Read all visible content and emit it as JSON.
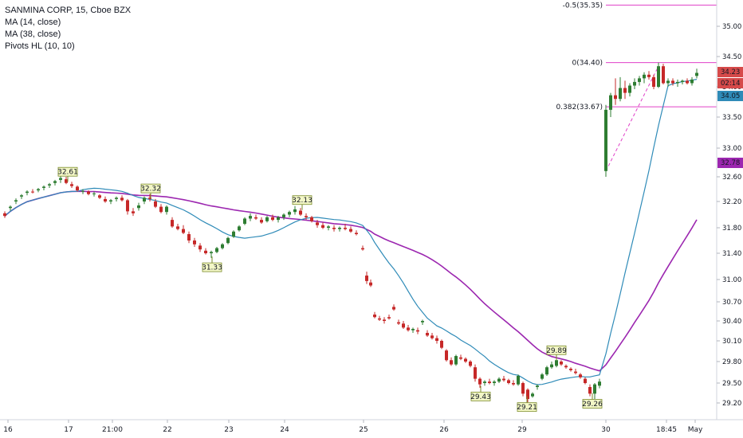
{
  "legend": {
    "title": "SANMINA CORP, 15, Cboe BZX",
    "ma14": "MA (14, close)",
    "ma38": "MA (38, close)",
    "pivots": "Pivots HL (10, 10)"
  },
  "colors": {
    "up": "#2e7d32",
    "down": "#c62828",
    "ma14": "#2f8bb8",
    "ma38": "#9c27b0",
    "fib": "#e040c8",
    "pivot_fill": "#f3f7c7",
    "pivot_border": "#7a8a2a"
  },
  "chart_data": {
    "type": "candlestick",
    "y_ticks": [
      "35.00",
      "34.50",
      "34.00",
      "33.50",
      "33.00",
      "32.60",
      "32.20",
      "31.80",
      "31.40",
      "31.00",
      "30.70",
      "30.40",
      "30.10",
      "29.80",
      "29.50",
      "29.20"
    ],
    "x_labels": [
      "16",
      "17",
      "21:00",
      "22",
      "23",
      "24",
      "25",
      "26",
      "29",
      "30",
      "18:45",
      "May"
    ],
    "ylim": [
      29.05,
      35.45
    ],
    "price_labels": [
      {
        "value": "34.23",
        "color": "#d64a4a"
      },
      {
        "value": "02:14",
        "color": "#d64a4a"
      },
      {
        "value": "34.05",
        "color": "#2f8bb8"
      },
      {
        "value": "32.78",
        "color": "#9c27b0"
      }
    ],
    "fib_levels": [
      {
        "label": "-0.5(35.35)",
        "value": 35.35
      },
      {
        "label": "0(34.40)",
        "value": 34.4
      },
      {
        "label": "0.382(33.67)",
        "value": 33.67
      }
    ],
    "pivots": [
      {
        "label": "32.61",
        "type": "high",
        "x": 85,
        "y": 32.52
      },
      {
        "label": "32.32",
        "type": "high",
        "x": 189,
        "y": 32.25
      },
      {
        "label": "31.33",
        "type": "low",
        "x": 266,
        "y": 31.35
      },
      {
        "label": "32.13",
        "type": "high",
        "x": 379,
        "y": 32.07
      },
      {
        "label": "29.43",
        "type": "low",
        "x": 603,
        "y": 29.46
      },
      {
        "label": "29.89",
        "type": "high",
        "x": 698,
        "y": 29.82
      },
      {
        "label": "29.21",
        "type": "low",
        "x": 661,
        "y": 29.3
      },
      {
        "label": "29.26",
        "type": "low",
        "x": 743,
        "y": 29.35
      }
    ],
    "candles": [
      [
        6,
        32.02,
        32.05,
        31.95,
        31.98
      ],
      [
        13,
        32.1,
        32.14,
        32.06,
        32.12
      ],
      [
        20,
        32.2,
        32.25,
        32.16,
        32.22
      ],
      [
        27,
        32.28,
        32.32,
        32.24,
        32.3
      ],
      [
        34,
        32.34,
        32.38,
        32.3,
        32.36
      ],
      [
        41,
        32.36,
        32.4,
        32.33,
        32.35
      ],
      [
        48,
        32.38,
        32.42,
        32.35,
        32.4
      ],
      [
        55,
        32.42,
        32.46,
        32.38,
        32.44
      ],
      [
        62,
        32.46,
        32.5,
        32.42,
        32.48
      ],
      [
        69,
        32.5,
        32.55,
        32.46,
        32.53
      ],
      [
        76,
        32.55,
        32.61,
        32.5,
        32.58
      ],
      [
        83,
        32.56,
        32.6,
        32.48,
        32.5
      ],
      [
        90,
        32.48,
        32.52,
        32.42,
        32.45
      ],
      [
        97,
        32.44,
        32.46,
        32.36,
        32.38
      ],
      [
        104,
        32.36,
        32.4,
        32.32,
        32.37
      ],
      [
        111,
        32.36,
        32.38,
        32.3,
        32.32
      ],
      [
        118,
        32.32,
        32.36,
        32.28,
        32.33
      ],
      [
        125,
        32.3,
        32.32,
        32.24,
        32.26
      ],
      [
        132,
        32.24,
        32.28,
        32.18,
        32.2
      ],
      [
        139,
        32.2,
        32.24,
        32.16,
        32.22
      ],
      [
        146,
        32.24,
        32.28,
        32.2,
        32.26
      ],
      [
        153,
        32.26,
        32.3,
        32.2,
        32.22
      ],
      [
        160,
        32.22,
        32.24,
        32.0,
        32.05
      ],
      [
        167,
        32.05,
        32.1,
        31.98,
        32.02
      ],
      [
        174,
        32.1,
        32.18,
        32.06,
        32.14
      ],
      [
        181,
        32.2,
        32.28,
        32.16,
        32.26
      ],
      [
        188,
        32.26,
        32.32,
        32.2,
        32.24
      ],
      [
        195,
        32.2,
        32.24,
        32.1,
        32.12
      ],
      [
        202,
        32.12,
        32.16,
        32.02,
        32.04
      ],
      [
        209,
        32.04,
        32.14,
        32.0,
        32.12
      ],
      [
        216,
        31.92,
        31.96,
        31.8,
        31.82
      ],
      [
        223,
        31.82,
        31.86,
        31.76,
        31.78
      ],
      [
        230,
        31.78,
        31.84,
        31.7,
        31.72
      ],
      [
        237,
        31.7,
        31.74,
        31.56,
        31.6
      ],
      [
        244,
        31.6,
        31.64,
        31.5,
        31.54
      ],
      [
        251,
        31.52,
        31.56,
        31.42,
        31.46
      ],
      [
        258,
        31.44,
        31.48,
        31.38,
        31.4
      ],
      [
        265,
        31.4,
        31.44,
        31.33,
        31.42
      ],
      [
        272,
        31.42,
        31.5,
        31.4,
        31.48
      ],
      [
        279,
        31.48,
        31.56,
        31.46,
        31.54
      ],
      [
        286,
        31.56,
        31.66,
        31.54,
        31.64
      ],
      [
        293,
        31.66,
        31.76,
        31.64,
        31.74
      ],
      [
        300,
        31.76,
        31.84,
        31.74,
        31.82
      ],
      [
        307,
        31.86,
        31.96,
        31.84,
        31.94
      ],
      [
        314,
        31.94,
        32.02,
        31.9,
        31.98
      ],
      [
        321,
        31.96,
        32.0,
        31.92,
        31.94
      ],
      [
        328,
        31.92,
        31.96,
        31.86,
        31.88
      ],
      [
        335,
        31.9,
        31.98,
        31.88,
        31.96
      ],
      [
        342,
        31.96,
        32.0,
        31.9,
        31.92
      ],
      [
        349,
        31.92,
        31.98,
        31.88,
        31.96
      ],
      [
        356,
        31.96,
        32.02,
        31.92,
        32.0
      ],
      [
        363,
        32.0,
        32.06,
        31.96,
        32.04
      ],
      [
        370,
        32.04,
        32.13,
        32.0,
        32.08
      ],
      [
        377,
        32.06,
        32.1,
        31.98,
        32.0
      ],
      [
        384,
        31.98,
        32.02,
        31.92,
        31.96
      ],
      [
        391,
        31.96,
        31.98,
        31.88,
        31.9
      ],
      [
        398,
        31.88,
        31.92,
        31.8,
        31.84
      ],
      [
        405,
        31.84,
        31.88,
        31.78,
        31.8
      ],
      [
        412,
        31.8,
        31.84,
        31.76,
        31.82
      ],
      [
        419,
        31.8,
        31.84,
        31.74,
        31.78
      ],
      [
        426,
        31.78,
        31.82,
        31.74,
        31.8
      ],
      [
        433,
        31.8,
        31.86,
        31.76,
        31.78
      ],
      [
        440,
        31.78,
        31.82,
        31.72,
        31.74
      ],
      [
        447,
        31.72,
        31.76,
        31.68,
        31.7
      ],
      [
        455,
        31.48,
        31.52,
        31.44,
        31.46
      ],
      [
        460,
        31.06,
        31.12,
        30.94,
        30.98
      ],
      [
        465,
        30.96,
        31.0,
        30.9,
        30.92
      ],
      [
        470,
        30.5,
        30.54,
        30.44,
        30.46
      ],
      [
        476,
        30.44,
        30.48,
        30.4,
        30.42
      ],
      [
        482,
        30.42,
        30.46,
        30.36,
        30.4
      ],
      [
        488,
        30.46,
        30.5,
        30.42,
        30.44
      ],
      [
        494,
        30.62,
        30.66,
        30.56,
        30.58
      ],
      [
        500,
        30.38,
        30.42,
        30.34,
        30.36
      ],
      [
        506,
        30.36,
        30.4,
        30.28,
        30.3
      ],
      [
        512,
        30.3,
        30.34,
        30.24,
        30.26
      ],
      [
        518,
        30.26,
        30.3,
        30.22,
        30.28
      ],
      [
        524,
        30.26,
        30.3,
        30.2,
        30.24
      ],
      [
        530,
        30.38,
        30.42,
        30.34,
        30.4
      ],
      [
        536,
        30.22,
        30.26,
        30.16,
        30.18
      ],
      [
        542,
        30.18,
        30.22,
        30.12,
        30.14
      ],
      [
        548,
        30.14,
        30.18,
        30.06,
        30.1
      ],
      [
        554,
        30.1,
        30.12,
        29.98,
        30.0
      ],
      [
        560,
        29.96,
        29.98,
        29.8,
        29.82
      ],
      [
        566,
        29.82,
        29.86,
        29.74,
        29.76
      ],
      [
        572,
        29.76,
        29.9,
        29.74,
        29.88
      ],
      [
        578,
        29.86,
        29.9,
        29.82,
        29.84
      ],
      [
        584,
        29.84,
        29.86,
        29.78,
        29.8
      ],
      [
        590,
        29.8,
        29.82,
        29.72,
        29.74
      ],
      [
        596,
        29.72,
        29.76,
        29.52,
        29.56
      ],
      [
        602,
        29.56,
        29.58,
        29.43,
        29.48
      ],
      [
        608,
        29.5,
        29.54,
        29.46,
        29.52
      ],
      [
        614,
        29.52,
        29.56,
        29.48,
        29.5
      ],
      [
        620,
        29.5,
        29.54,
        29.46,
        29.52
      ],
      [
        626,
        29.52,
        29.58,
        29.5,
        29.56
      ],
      [
        632,
        29.56,
        29.6,
        29.52,
        29.54
      ],
      [
        638,
        29.54,
        29.56,
        29.48,
        29.5
      ],
      [
        644,
        29.5,
        29.54,
        29.46,
        29.48
      ],
      [
        650,
        29.48,
        29.62,
        29.46,
        29.6
      ],
      [
        656,
        29.5,
        29.52,
        29.3,
        29.34
      ],
      [
        662,
        29.4,
        29.42,
        29.21,
        29.26
      ],
      [
        668,
        29.3,
        29.36,
        29.28,
        29.34
      ],
      [
        674,
        29.44,
        29.48,
        29.4,
        29.46
      ],
      [
        680,
        29.56,
        29.64,
        29.54,
        29.62
      ],
      [
        686,
        29.62,
        29.74,
        29.6,
        29.72
      ],
      [
        692,
        29.72,
        29.8,
        29.7,
        29.76
      ],
      [
        698,
        29.74,
        29.89,
        29.72,
        29.82
      ],
      [
        704,
        29.8,
        29.82,
        29.74,
        29.76
      ],
      [
        710,
        29.74,
        29.76,
        29.7,
        29.72
      ],
      [
        716,
        29.7,
        29.72,
        29.66,
        29.68
      ],
      [
        722,
        29.66,
        29.7,
        29.62,
        29.64
      ],
      [
        728,
        29.62,
        29.64,
        29.56,
        29.58
      ],
      [
        734,
        29.56,
        29.58,
        29.48,
        29.5
      ],
      [
        740,
        29.44,
        29.48,
        29.3,
        29.34
      ],
      [
        746,
        29.34,
        29.5,
        29.26,
        29.48
      ],
      [
        752,
        29.46,
        29.56,
        29.42,
        29.52
      ],
      [
        760,
        32.68,
        33.7,
        32.6,
        33.62
      ],
      [
        766,
        33.62,
        33.9,
        33.5,
        33.86
      ],
      [
        772,
        33.86,
        34.14,
        33.7,
        33.8
      ],
      [
        778,
        33.8,
        34.16,
        33.76,
        33.98
      ],
      [
        784,
        33.98,
        34.1,
        33.8,
        33.9
      ],
      [
        790,
        33.9,
        34.06,
        33.84,
        34.02
      ],
      [
        796,
        34.02,
        34.14,
        33.96,
        34.08
      ],
      [
        802,
        34.08,
        34.18,
        34.02,
        34.14
      ],
      [
        808,
        34.14,
        34.24,
        34.06,
        34.2
      ],
      [
        814,
        34.2,
        34.26,
        34.12,
        34.16
      ],
      [
        820,
        34.16,
        34.2,
        33.96,
        34.0
      ],
      [
        826,
        34.0,
        34.4,
        33.98,
        34.34
      ],
      [
        832,
        34.34,
        34.38,
        34.04,
        34.06
      ],
      [
        838,
        34.06,
        34.14,
        34.0,
        34.1
      ],
      [
        844,
        34.1,
        34.14,
        34.02,
        34.06
      ],
      [
        850,
        34.06,
        34.12,
        34.0,
        34.08
      ],
      [
        856,
        34.08,
        34.12,
        34.04,
        34.1
      ],
      [
        862,
        34.1,
        34.14,
        34.04,
        34.06
      ],
      [
        868,
        34.06,
        34.16,
        34.02,
        34.12
      ],
      [
        874,
        34.18,
        34.3,
        34.14,
        34.23
      ]
    ]
  }
}
